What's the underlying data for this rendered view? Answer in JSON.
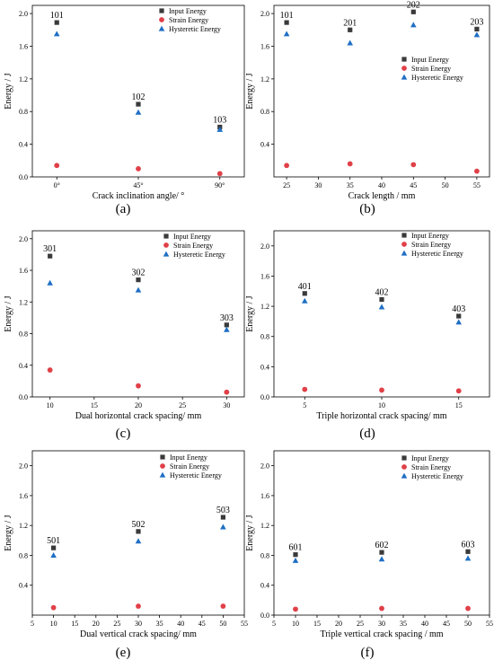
{
  "figure": {
    "panels": [
      "(a)",
      "(b)",
      "(c)",
      "(d)",
      "(e)",
      "(f)"
    ]
  },
  "legend_labels": [
    "Input Energy",
    "Strain Energy",
    "Hysteretic Energy"
  ],
  "colors": {
    "input": "#3a3a3a",
    "strain": "#e04048",
    "hysteretic": "#1f6fc4"
  },
  "chart_data": [
    {
      "type": "scatter",
      "panel": "(a)",
      "xlabel": "Crack inclination angle/ °",
      "ylabel": "Energy / J",
      "x_categorical": true,
      "categories": [
        "0°",
        "45°",
        "90°"
      ],
      "xlim": [
        -0.3,
        2.3
      ],
      "ylim": [
        0,
        2.1
      ],
      "yticks": [
        0.0,
        0.4,
        0.8,
        1.2,
        1.6,
        2.0
      ],
      "ytick_labels": [
        "0.0",
        "0.4",
        "0.8",
        "1.2",
        "1.6",
        "2.0"
      ],
      "legend_position": "top-right",
      "point_labels": [
        "101",
        "102",
        "103"
      ],
      "series": [
        {
          "name": "Input Energy",
          "values": [
            1.89,
            0.89,
            0.61
          ]
        },
        {
          "name": "Strain Energy",
          "values": [
            0.14,
            0.1,
            0.04
          ]
        },
        {
          "name": "Hysteretic Energy",
          "values": [
            1.75,
            0.79,
            0.58
          ]
        }
      ]
    },
    {
      "type": "scatter",
      "panel": "(b)",
      "xlabel": "Crack length / mm",
      "ylabel": "Energy / J",
      "x": [
        25,
        35,
        45,
        55
      ],
      "xlim": [
        23,
        57
      ],
      "xticks": [
        25,
        30,
        35,
        40,
        45,
        50,
        55
      ],
      "xtick_labels": [
        "25",
        "30",
        "35",
        "40",
        "45",
        "50",
        "55"
      ],
      "ylim": [
        0,
        2.1
      ],
      "yticks": [
        0.4,
        0.8,
        1.2,
        1.6,
        2.0
      ],
      "ytick_labels": [
        "0.4",
        "0.8",
        "1.2",
        "1.6",
        "2.0"
      ],
      "legend_position": "center-right",
      "point_labels": [
        "101",
        "201",
        "202",
        "203"
      ],
      "series": [
        {
          "name": "Input Energy",
          "values": [
            1.89,
            1.8,
            2.02,
            1.81
          ]
        },
        {
          "name": "Strain Energy",
          "values": [
            0.14,
            0.16,
            0.15,
            0.07
          ]
        },
        {
          "name": "Hysteretic Energy",
          "values": [
            1.75,
            1.64,
            1.86,
            1.74
          ]
        }
      ]
    },
    {
      "type": "scatter",
      "panel": "(c)",
      "xlabel": "Dual horizontal crack spacing/ mm",
      "ylabel": "Energy / J",
      "x": [
        10,
        20,
        30
      ],
      "xlim": [
        8,
        32
      ],
      "xticks": [
        10,
        15,
        20,
        25,
        30
      ],
      "xtick_labels": [
        "10",
        "15",
        "20",
        "25",
        "30"
      ],
      "ylim": [
        0,
        2.1
      ],
      "yticks": [
        0.0,
        0.4,
        0.8,
        1.2,
        1.6,
        2.0
      ],
      "ytick_labels": [
        "0.0",
        "0.4",
        "0.8",
        "1.2",
        "1.6",
        "2.0"
      ],
      "legend_position": "top-right",
      "point_labels": [
        "301",
        "302",
        "303"
      ],
      "series": [
        {
          "name": "Input Energy",
          "values": [
            1.78,
            1.48,
            0.91
          ]
        },
        {
          "name": "Strain Energy",
          "values": [
            0.34,
            0.14,
            0.06
          ]
        },
        {
          "name": "Hysteretic Energy",
          "values": [
            1.44,
            1.35,
            0.85
          ]
        }
      ]
    },
    {
      "type": "scatter",
      "panel": "(d)",
      "xlabel": "Triple horizontal crack spacing/ mm",
      "ylabel": "Energy / J",
      "x": [
        5,
        10,
        15
      ],
      "xlim": [
        3,
        17
      ],
      "xticks": [
        5,
        10,
        15
      ],
      "xtick_labels": [
        "5",
        "10",
        "15"
      ],
      "ylim": [
        0,
        2.2
      ],
      "yticks": [
        0.0,
        0.4,
        0.8,
        1.2,
        1.6,
        2.0
      ],
      "ytick_labels": [
        "0.0",
        "0.4",
        "0.8",
        "1.2",
        "1.6",
        "2.0"
      ],
      "legend_position": "top-right",
      "point_labels": [
        "401",
        "402",
        "403"
      ],
      "series": [
        {
          "name": "Input Energy",
          "values": [
            1.37,
            1.29,
            1.07
          ]
        },
        {
          "name": "Strain Energy",
          "values": [
            0.1,
            0.09,
            0.08
          ]
        },
        {
          "name": "Hysteretic Energy",
          "values": [
            1.27,
            1.19,
            0.99
          ]
        }
      ]
    },
    {
      "type": "scatter",
      "panel": "(e)",
      "xlabel": "Dual vertical crack spacing/ mm",
      "ylabel": "Energy / J",
      "x": [
        10,
        30,
        50
      ],
      "xlim": [
        5,
        55
      ],
      "xticks": [
        5,
        10,
        15,
        20,
        25,
        30,
        35,
        40,
        45,
        50,
        55
      ],
      "xtick_labels": [
        "5",
        "10",
        "15",
        "20",
        "25",
        "30",
        "35",
        "40",
        "45",
        "50",
        "55"
      ],
      "ylim": [
        0,
        2.2
      ],
      "yticks": [
        0.4,
        0.8,
        1.2,
        1.6,
        2.0
      ],
      "ytick_labels": [
        "0.4",
        "0.8",
        "1.2",
        "1.6",
        "2.0"
      ],
      "legend_position": "top-right",
      "point_labels": [
        "501",
        "502",
        "503"
      ],
      "series": [
        {
          "name": "Input Energy",
          "values": [
            0.9,
            1.12,
            1.31
          ]
        },
        {
          "name": "Strain Energy",
          "values": [
            0.1,
            0.12,
            0.12
          ]
        },
        {
          "name": "Hysteretic Energy",
          "values": [
            0.8,
            0.99,
            1.18
          ]
        }
      ]
    },
    {
      "type": "scatter",
      "panel": "(f)",
      "xlabel": "Triple vertical crack spacing / mm",
      "ylabel": "Energy / J",
      "x": [
        10,
        30,
        50
      ],
      "xlim": [
        5,
        55
      ],
      "xticks": [
        5,
        10,
        15,
        20,
        25,
        30,
        35,
        40,
        45,
        50,
        55
      ],
      "xtick_labels": [
        "5",
        "10",
        "15",
        "20",
        "25",
        "30",
        "35",
        "40",
        "45",
        "50",
        "55"
      ],
      "ylim": [
        0,
        2.2
      ],
      "yticks": [
        0.0,
        0.4,
        0.8,
        1.2,
        1.6,
        2.0
      ],
      "ytick_labels": [
        "0.0",
        "0.4",
        "0.8",
        "1.2",
        "1.6",
        "2.0"
      ],
      "legend_position": "top-right",
      "point_labels": [
        "601",
        "602",
        "603"
      ],
      "series": [
        {
          "name": "Input Energy",
          "values": [
            0.81,
            0.84,
            0.85
          ]
        },
        {
          "name": "Strain Energy",
          "values": [
            0.08,
            0.09,
            0.09
          ]
        },
        {
          "name": "Hysteretic Energy",
          "values": [
            0.73,
            0.75,
            0.76
          ]
        }
      ]
    }
  ]
}
